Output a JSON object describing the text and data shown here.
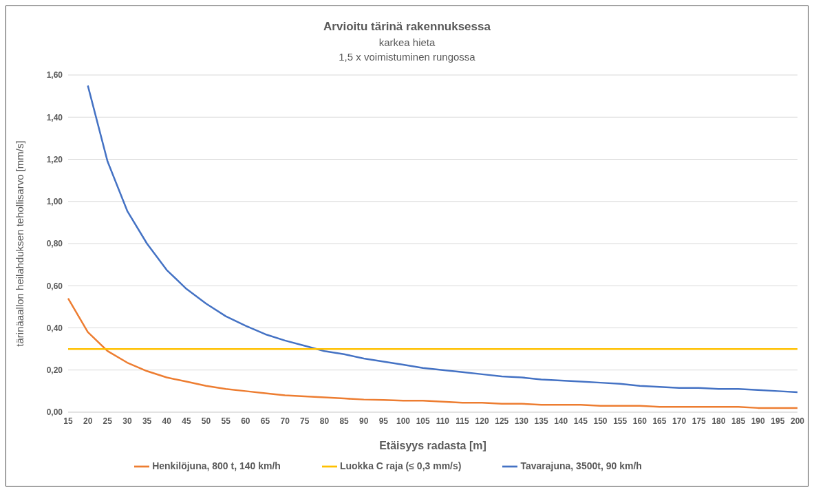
{
  "chart_data": {
    "type": "line",
    "title": "Arvioitu tärinä rakennuksessa",
    "subtitle": "karkea hieta\n1,5 x voimistuminen rungossa",
    "xlabel": "Etäisyys radasta [m]",
    "ylabel": "tärinäaallon heilahduksen tehollisarvo [mm/s]",
    "categories": [
      "15",
      "20",
      "25",
      "30",
      "35",
      "40",
      "45",
      "50",
      "55",
      "60",
      "65",
      "70",
      "75",
      "80",
      "85",
      "90",
      "95",
      "100",
      "105",
      "110",
      "115",
      "120",
      "125",
      "130",
      "135",
      "140",
      "145",
      "150",
      "155",
      "160",
      "165",
      "170",
      "175",
      "180",
      "185",
      "190",
      "195",
      "200"
    ],
    "series": [
      {
        "name": "Tavarajuna, 3500t, 90 km/h",
        "color": "#4472c4",
        "values": [
          null,
          1.55,
          1.19,
          0.955,
          0.8,
          0.675,
          0.585,
          0.515,
          0.455,
          0.41,
          0.37,
          0.34,
          0.315,
          0.29,
          0.275,
          0.255,
          0.24,
          0.225,
          0.21,
          0.2,
          0.19,
          0.18,
          0.17,
          0.165,
          0.155,
          0.15,
          0.145,
          0.14,
          0.135,
          0.125,
          0.12,
          0.115,
          0.115,
          0.11,
          0.11,
          0.105,
          0.1,
          0.095
        ]
      },
      {
        "name": "Henkilöjuna, 800 t, 140 km/h",
        "color": "#ed7d31",
        "values": [
          0.54,
          0.38,
          0.29,
          0.235,
          0.195,
          0.165,
          0.145,
          0.125,
          0.11,
          0.1,
          0.09,
          0.08,
          0.075,
          0.07,
          0.065,
          0.06,
          0.058,
          0.055,
          0.055,
          0.05,
          0.045,
          0.045,
          0.04,
          0.04,
          0.035,
          0.035,
          0.035,
          0.03,
          0.03,
          0.03,
          0.025,
          0.025,
          0.025,
          0.025,
          0.025,
          0.02,
          0.02,
          0.02
        ]
      },
      {
        "name": "Luokka C raja (≤ 0,3 mm/s)",
        "color": "#ffc000",
        "values": [
          0.3,
          0.3,
          0.3,
          0.3,
          0.3,
          0.3,
          0.3,
          0.3,
          0.3,
          0.3,
          0.3,
          0.3,
          0.3,
          0.3,
          0.3,
          0.3,
          0.3,
          0.3,
          0.3,
          0.3,
          0.3,
          0.3,
          0.3,
          0.3,
          0.3,
          0.3,
          0.3,
          0.3,
          0.3,
          0.3,
          0.3,
          0.3,
          0.3,
          0.3,
          0.3,
          0.3,
          0.3,
          0.3
        ]
      }
    ],
    "ylim": [
      0,
      1.6
    ],
    "yticks": [
      {
        "value": 0,
        "label": "0,00"
      },
      {
        "value": 0.2,
        "label": "0,20"
      },
      {
        "value": 0.4,
        "label": "0,40"
      },
      {
        "value": 0.6,
        "label": "0,60"
      },
      {
        "value": 0.8,
        "label": "0,80"
      },
      {
        "value": 1,
        "label": "1,00"
      },
      {
        "value": 1.2,
        "label": "1,20"
      },
      {
        "value": 1.4,
        "label": "1,40"
      },
      {
        "value": 1.6,
        "label": "1,60"
      }
    ],
    "grid": "y",
    "legend": "bottom",
    "marker": "none",
    "line_style": "solid"
  }
}
